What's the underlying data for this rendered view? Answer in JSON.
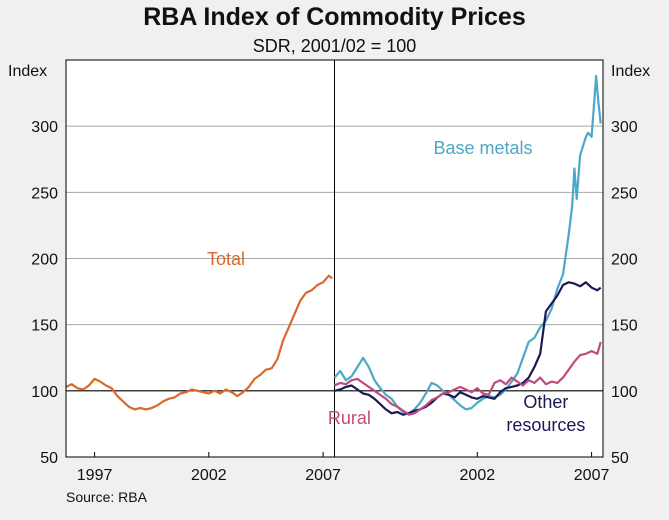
{
  "chart_data": {
    "type": "line",
    "title": "RBA Index of Commodity Prices",
    "subtitle": "SDR, 2001/02 = 100",
    "source": "Source: RBA",
    "ylabel_left": "Index",
    "ylabel_right": "Index",
    "ylim": [
      50,
      350
    ],
    "yticks": [
      50,
      100,
      150,
      200,
      250,
      300
    ],
    "xlim": [
      1995.75,
      2007.5
    ],
    "xticks": [
      {
        "label": "1997",
        "x": 1997
      },
      {
        "label": "2002",
        "x": 2002
      },
      {
        "label": "2007",
        "x": 2007
      }
    ],
    "grid": true,
    "panels": [
      {
        "name": "left",
        "series": [
          {
            "name": "Total",
            "color": "#d9692a",
            "label": "Total",
            "points": [
              [
                1995.75,
                103
              ],
              [
                1996.0,
                105
              ],
              [
                1996.25,
                102
              ],
              [
                1996.5,
                101
              ],
              [
                1996.75,
                104
              ],
              [
                1997.0,
                109
              ],
              [
                1997.25,
                107
              ],
              [
                1997.5,
                104
              ],
              [
                1997.75,
                102
              ],
              [
                1998.0,
                96
              ],
              [
                1998.25,
                92
              ],
              [
                1998.5,
                88
              ],
              [
                1998.75,
                86
              ],
              [
                1999.0,
                87
              ],
              [
                1999.25,
                86
              ],
              [
                1999.5,
                87
              ],
              [
                1999.75,
                89
              ],
              [
                2000.0,
                92
              ],
              [
                2000.25,
                94
              ],
              [
                2000.5,
                95
              ],
              [
                2000.75,
                98
              ],
              [
                2001.0,
                99
              ],
              [
                2001.25,
                101
              ],
              [
                2001.5,
                100
              ],
              [
                2001.75,
                99
              ],
              [
                2002.0,
                98
              ],
              [
                2002.25,
                100
              ],
              [
                2002.5,
                98
              ],
              [
                2002.75,
                101
              ],
              [
                2003.0,
                99
              ],
              [
                2003.25,
                96
              ],
              [
                2003.5,
                99
              ],
              [
                2003.75,
                103
              ],
              [
                2004.0,
                109
              ],
              [
                2004.25,
                112
              ],
              [
                2004.5,
                116
              ],
              [
                2004.75,
                117
              ],
              [
                2005.0,
                124
              ],
              [
                2005.25,
                138
              ],
              [
                2005.5,
                148
              ],
              [
                2005.75,
                158
              ],
              [
                2006.0,
                168
              ],
              [
                2006.25,
                174
              ],
              [
                2006.5,
                176
              ],
              [
                2006.75,
                180
              ],
              [
                2007.0,
                182
              ],
              [
                2007.25,
                187
              ],
              [
                2007.4,
                185
              ]
            ]
          }
        ]
      },
      {
        "name": "right",
        "series": [
          {
            "name": "Base metals",
            "color": "#4ba8c8",
            "label": "Base metals",
            "points": [
              [
                1995.75,
                110
              ],
              [
                1996.0,
                115
              ],
              [
                1996.25,
                108
              ],
              [
                1996.5,
                111
              ],
              [
                1996.75,
                118
              ],
              [
                1997.0,
                125
              ],
              [
                1997.25,
                118
              ],
              [
                1997.5,
                108
              ],
              [
                1997.75,
                102
              ],
              [
                1998.0,
                97
              ],
              [
                1998.25,
                94
              ],
              [
                1998.5,
                88
              ],
              [
                1998.75,
                84
              ],
              [
                1999.0,
                83
              ],
              [
                1999.25,
                86
              ],
              [
                1999.5,
                91
              ],
              [
                1999.75,
                98
              ],
              [
                2000.0,
                106
              ],
              [
                2000.25,
                104
              ],
              [
                2000.5,
                100
              ],
              [
                2000.75,
                97
              ],
              [
                2001.0,
                93
              ],
              [
                2001.25,
                89
              ],
              [
                2001.5,
                86
              ],
              [
                2001.75,
                87
              ],
              [
                2002.0,
                91
              ],
              [
                2002.25,
                94
              ],
              [
                2002.5,
                96
              ],
              [
                2002.75,
                95
              ],
              [
                2003.0,
                97
              ],
              [
                2003.25,
                101
              ],
              [
                2003.5,
                107
              ],
              [
                2003.75,
                113
              ],
              [
                2004.0,
                125
              ],
              [
                2004.25,
                137
              ],
              [
                2004.5,
                140
              ],
              [
                2004.75,
                148
              ],
              [
                2005.0,
                153
              ],
              [
                2005.25,
                162
              ],
              [
                2005.5,
                177
              ],
              [
                2005.75,
                188
              ],
              [
                2006.0,
                218
              ],
              [
                2006.15,
                240
              ],
              [
                2006.25,
                268
              ],
              [
                2006.35,
                245
              ],
              [
                2006.5,
                278
              ],
              [
                2006.75,
                292
              ],
              [
                2006.85,
                295
              ],
              [
                2007.0,
                292
              ],
              [
                2007.1,
                315
              ],
              [
                2007.2,
                338
              ],
              [
                2007.3,
                318
              ],
              [
                2007.4,
                302
              ]
            ]
          },
          {
            "name": "Other resources",
            "color": "#1a1a55",
            "label": "Other resources",
            "points": [
              [
                1995.75,
                100
              ],
              [
                1996.0,
                101
              ],
              [
                1996.25,
                103
              ],
              [
                1996.5,
                104
              ],
              [
                1996.75,
                101
              ],
              [
                1997.0,
                98
              ],
              [
                1997.25,
                97
              ],
              [
                1997.5,
                94
              ],
              [
                1997.75,
                90
              ],
              [
                1998.0,
                86
              ],
              [
                1998.25,
                83
              ],
              [
                1998.5,
                84
              ],
              [
                1998.75,
                82
              ],
              [
                1999.0,
                83
              ],
              [
                1999.25,
                85
              ],
              [
                1999.5,
                86
              ],
              [
                1999.75,
                88
              ],
              [
                2000.0,
                91
              ],
              [
                2000.25,
                95
              ],
              [
                2000.5,
                98
              ],
              [
                2000.75,
                97
              ],
              [
                2001.0,
                95
              ],
              [
                2001.25,
                99
              ],
              [
                2001.5,
                97
              ],
              [
                2001.75,
                95
              ],
              [
                2002.0,
                94
              ],
              [
                2002.25,
                96
              ],
              [
                2002.5,
                95
              ],
              [
                2002.75,
                94
              ],
              [
                2003.0,
                99
              ],
              [
                2003.25,
                102
              ],
              [
                2003.5,
                103
              ],
              [
                2003.75,
                104
              ],
              [
                2004.0,
                106
              ],
              [
                2004.25,
                110
              ],
              [
                2004.5,
                118
              ],
              [
                2004.75,
                128
              ],
              [
                2005.0,
                160
              ],
              [
                2005.25,
                166
              ],
              [
                2005.5,
                172
              ],
              [
                2005.75,
                180
              ],
              [
                2006.0,
                182
              ],
              [
                2006.25,
                181
              ],
              [
                2006.5,
                179
              ],
              [
                2006.75,
                182
              ],
              [
                2007.0,
                178
              ],
              [
                2007.25,
                176
              ],
              [
                2007.4,
                178
              ]
            ]
          },
          {
            "name": "Rural",
            "color": "#c04a7c",
            "label": "Rural",
            "points": [
              [
                1995.75,
                104
              ],
              [
                1996.0,
                106
              ],
              [
                1996.25,
                105
              ],
              [
                1996.5,
                108
              ],
              [
                1996.75,
                109
              ],
              [
                1997.0,
                106
              ],
              [
                1997.25,
                103
              ],
              [
                1997.5,
                100
              ],
              [
                1997.75,
                97
              ],
              [
                1998.0,
                94
              ],
              [
                1998.25,
                90
              ],
              [
                1998.5,
                88
              ],
              [
                1998.75,
                85
              ],
              [
                1999.0,
                82
              ],
              [
                1999.25,
                83
              ],
              [
                1999.5,
                86
              ],
              [
                1999.75,
                89
              ],
              [
                2000.0,
                93
              ],
              [
                2000.25,
                95
              ],
              [
                2000.5,
                98
              ],
              [
                2000.75,
                99
              ],
              [
                2001.0,
                101
              ],
              [
                2001.25,
                103
              ],
              [
                2001.5,
                101
              ],
              [
                2001.75,
                99
              ],
              [
                2002.0,
                102
              ],
              [
                2002.25,
                98
              ],
              [
                2002.5,
                97
              ],
              [
                2002.75,
                106
              ],
              [
                2003.0,
                108
              ],
              [
                2003.25,
                105
              ],
              [
                2003.5,
                110
              ],
              [
                2003.75,
                107
              ],
              [
                2004.0,
                104
              ],
              [
                2004.25,
                108
              ],
              [
                2004.5,
                106
              ],
              [
                2004.75,
                110
              ],
              [
                2005.0,
                105
              ],
              [
                2005.25,
                107
              ],
              [
                2005.5,
                106
              ],
              [
                2005.75,
                110
              ],
              [
                2006.0,
                116
              ],
              [
                2006.25,
                122
              ],
              [
                2006.5,
                127
              ],
              [
                2006.75,
                128
              ],
              [
                2007.0,
                130
              ],
              [
                2007.25,
                128
              ],
              [
                2007.4,
                137
              ]
            ]
          }
        ]
      }
    ],
    "annotations": [
      {
        "panel": "left",
        "text": [
          "Total"
        ],
        "color": "#d9692a",
        "at": [
          2002.75,
          195
        ]
      },
      {
        "panel": "right",
        "text": [
          "Base metals"
        ],
        "color": "#4ba8c8",
        "at": [
          2002.25,
          279
        ]
      },
      {
        "panel": "right",
        "text": [
          "Rural"
        ],
        "color": "#c04a7c",
        "at": [
          1996.4,
          75
        ]
      },
      {
        "panel": "right",
        "text": [
          "Other",
          "resources"
        ],
        "color": "#1a1a55",
        "at": [
          2005.0,
          87
        ]
      }
    ]
  }
}
